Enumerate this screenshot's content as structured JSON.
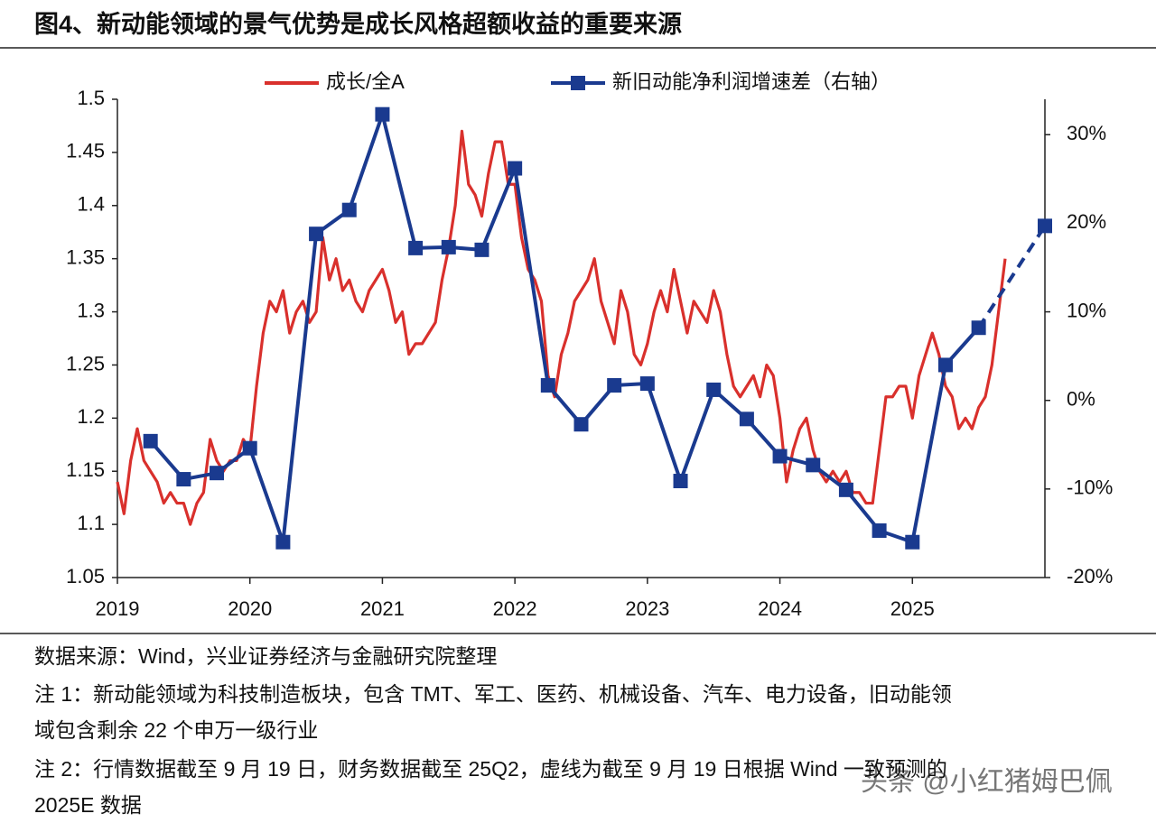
{
  "chart_data": {
    "type": "line",
    "title": "图4、新动能领域的景气优势是成长风格超额收益的重要来源",
    "xlim": [
      2019,
      2026
    ],
    "xticks": [
      2019,
      2020,
      2021,
      2022,
      2023,
      2024,
      2025
    ],
    "ylim": [
      1.05,
      1.5
    ],
    "yticks": [
      1.05,
      1.1,
      1.15,
      1.2,
      1.25,
      1.3,
      1.35,
      1.4,
      1.45,
      1.5
    ],
    "y2lim": [
      -20,
      34
    ],
    "y2ticks": [
      {
        "value": -20,
        "label": "-20%"
      },
      {
        "value": -10,
        "label": "-10%"
      },
      {
        "value": 0,
        "label": "0%"
      },
      {
        "value": 10,
        "label": "10%"
      },
      {
        "value": 20,
        "label": "20%"
      },
      {
        "value": 30,
        "label": "30%"
      }
    ],
    "legend": "top",
    "series": [
      {
        "name": "成长/全A",
        "color": "#d9302c",
        "x": [
          2019,
          2019.05,
          2019.1,
          2019.15,
          2019.2,
          2019.25,
          2019.3,
          2019.35,
          2019.4,
          2019.45,
          2019.5,
          2019.55,
          2019.6,
          2019.65,
          2019.7,
          2019.75,
          2019.8,
          2019.85,
          2019.9,
          2019.95,
          2020,
          2020.05,
          2020.1,
          2020.15,
          2020.2,
          2020.25,
          2020.3,
          2020.35,
          2020.4,
          2020.45,
          2020.5,
          2020.55,
          2020.6,
          2020.65,
          2020.7,
          2020.75,
          2020.8,
          2020.85,
          2020.9,
          2020.95,
          2021,
          2021.05,
          2021.1,
          2021.15,
          2021.2,
          2021.25,
          2021.3,
          2021.35,
          2021.4,
          2021.45,
          2021.5,
          2021.55,
          2021.6,
          2021.65,
          2021.7,
          2021.75,
          2021.8,
          2021.85,
          2021.9,
          2021.95,
          2022,
          2022.05,
          2022.1,
          2022.15,
          2022.2,
          2022.25,
          2022.3,
          2022.35,
          2022.4,
          2022.45,
          2022.5,
          2022.55,
          2022.6,
          2022.65,
          2022.7,
          2022.75,
          2022.8,
          2022.85,
          2022.9,
          2022.95,
          2023,
          2023.05,
          2023.1,
          2023.15,
          2023.2,
          2023.25,
          2023.3,
          2023.35,
          2023.4,
          2023.45,
          2023.5,
          2023.55,
          2023.6,
          2023.65,
          2023.7,
          2023.75,
          2023.8,
          2023.85,
          2023.9,
          2023.95,
          2024,
          2024.05,
          2024.1,
          2024.15,
          2024.2,
          2024.25,
          2024.3,
          2024.35,
          2024.4,
          2024.45,
          2024.5,
          2024.55,
          2024.6,
          2024.65,
          2024.7,
          2024.75,
          2024.8,
          2024.85,
          2024.9,
          2024.95,
          2025,
          2025.05,
          2025.1,
          2025.15,
          2025.2,
          2025.25,
          2025.3,
          2025.35,
          2025.4,
          2025.45,
          2025.5,
          2025.55,
          2025.6,
          2025.65,
          2025.7
        ],
        "values": [
          1.14,
          1.11,
          1.16,
          1.19,
          1.16,
          1.15,
          1.14,
          1.12,
          1.13,
          1.12,
          1.12,
          1.1,
          1.12,
          1.13,
          1.18,
          1.16,
          1.15,
          1.16,
          1.16,
          1.18,
          1.17,
          1.23,
          1.28,
          1.31,
          1.3,
          1.32,
          1.28,
          1.3,
          1.31,
          1.29,
          1.3,
          1.37,
          1.33,
          1.35,
          1.32,
          1.33,
          1.31,
          1.3,
          1.32,
          1.33,
          1.34,
          1.32,
          1.29,
          1.3,
          1.26,
          1.27,
          1.27,
          1.28,
          1.29,
          1.33,
          1.36,
          1.4,
          1.47,
          1.42,
          1.41,
          1.39,
          1.43,
          1.46,
          1.46,
          1.42,
          1.42,
          1.37,
          1.34,
          1.33,
          1.31,
          1.24,
          1.22,
          1.26,
          1.28,
          1.31,
          1.32,
          1.33,
          1.35,
          1.31,
          1.29,
          1.27,
          1.32,
          1.3,
          1.26,
          1.25,
          1.27,
          1.3,
          1.32,
          1.3,
          1.34,
          1.31,
          1.28,
          1.31,
          1.3,
          1.29,
          1.32,
          1.3,
          1.26,
          1.23,
          1.22,
          1.23,
          1.24,
          1.22,
          1.25,
          1.24,
          1.2,
          1.14,
          1.17,
          1.19,
          1.2,
          1.17,
          1.15,
          1.14,
          1.15,
          1.14,
          1.15,
          1.13,
          1.13,
          1.12,
          1.12,
          1.17,
          1.22,
          1.22,
          1.23,
          1.23,
          1.2,
          1.24,
          1.26,
          1.28,
          1.26,
          1.23,
          1.22,
          1.19,
          1.2,
          1.19,
          1.21,
          1.22,
          1.25,
          1.3,
          1.35
        ]
      },
      {
        "name": "新旧动能净利润增速差（右轴）",
        "color": "#1a3a8f",
        "axis": "y2",
        "marker": "square",
        "dashed_from": 25,
        "x": [
          2019.25,
          2019.5,
          2019.75,
          2020,
          2020.25,
          2020.5,
          2020.75,
          2021,
          2021.25,
          2021.5,
          2021.75,
          2022,
          2022.25,
          2022.5,
          2022.75,
          2023,
          2023.25,
          2023.5,
          2023.75,
          2024,
          2024.25,
          2024.5,
          2024.75,
          2025,
          2025.25,
          2025.5,
          2026
        ],
        "values": [
          -4.6,
          -8.9,
          -8.2,
          -5.4,
          -16,
          18.8,
          21.5,
          32.3,
          17.2,
          17.3,
          17,
          26.2,
          1.7,
          -2.7,
          1.7,
          1.9,
          -9.1,
          1.2,
          -2.1,
          -6.3,
          -7.3,
          -10.1,
          -14.7,
          -16,
          4,
          8.2,
          19.7
        ]
      }
    ]
  },
  "notes": [
    "数据来源：Wind，兴业证券经济与金融研究院整理",
    "注 1：新动能领域为科技制造板块，包含 TMT、军工、医药、机械设备、汽车、电力设备，旧动能领",
    "域包含剩余 22 个申万一级行业",
    "注 2：行情数据截至 9 月 19 日，财务数据截至 25Q2，虚线为截至 9 月 19 日根据 Wind 一致预测的",
    "2025E 数据"
  ],
  "watermark": "头条 @小红猪姆巴佩"
}
